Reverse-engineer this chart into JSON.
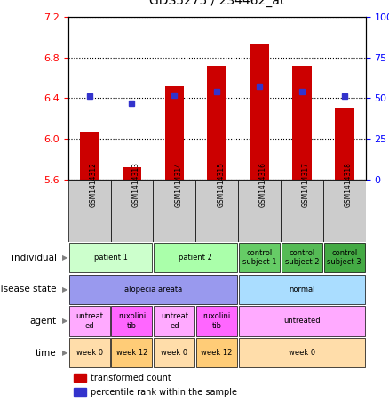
{
  "title": "GDS5275 / 234462_at",
  "samples": [
    "GSM1414312",
    "GSM1414313",
    "GSM1414314",
    "GSM1414315",
    "GSM1414316",
    "GSM1414317",
    "GSM1414318"
  ],
  "bar_values": [
    6.07,
    5.72,
    6.52,
    6.72,
    6.94,
    6.72,
    6.31
  ],
  "dot_values": [
    6.42,
    6.35,
    6.43,
    6.46,
    6.52,
    6.46,
    6.42
  ],
  "y_min": 5.6,
  "y_max": 7.2,
  "y_ticks": [
    5.6,
    6.0,
    6.4,
    6.8,
    7.2
  ],
  "y2_labels": [
    "0",
    "25",
    "50",
    "75",
    "100%"
  ],
  "bar_color": "#cc0000",
  "dot_color": "#3333cc",
  "metadata_rows": [
    {
      "label": "individual",
      "cells": [
        {
          "text": "patient 1",
          "colspan": 2,
          "color": "#ccffcc"
        },
        {
          "text": "patient 2",
          "colspan": 2,
          "color": "#aaffaa"
        },
        {
          "text": "control\nsubject 1",
          "colspan": 1,
          "color": "#66cc66"
        },
        {
          "text": "control\nsubject 2",
          "colspan": 1,
          "color": "#55bb55"
        },
        {
          "text": "control\nsubject 3",
          "colspan": 1,
          "color": "#44aa44"
        }
      ]
    },
    {
      "label": "disease state",
      "cells": [
        {
          "text": "alopecia areata",
          "colspan": 4,
          "color": "#9999ee"
        },
        {
          "text": "normal",
          "colspan": 3,
          "color": "#aaddff"
        }
      ]
    },
    {
      "label": "agent",
      "cells": [
        {
          "text": "untreat\ned",
          "colspan": 1,
          "color": "#ffaaff"
        },
        {
          "text": "ruxolini\ntib",
          "colspan": 1,
          "color": "#ff66ff"
        },
        {
          "text": "untreat\ned",
          "colspan": 1,
          "color": "#ffaaff"
        },
        {
          "text": "ruxolini\ntib",
          "colspan": 1,
          "color": "#ff66ff"
        },
        {
          "text": "untreated",
          "colspan": 3,
          "color": "#ffaaff"
        }
      ]
    },
    {
      "label": "time",
      "cells": [
        {
          "text": "week 0",
          "colspan": 1,
          "color": "#ffddaa"
        },
        {
          "text": "week 12",
          "colspan": 1,
          "color": "#ffcc77"
        },
        {
          "text": "week 0",
          "colspan": 1,
          "color": "#ffddaa"
        },
        {
          "text": "week 12",
          "colspan": 1,
          "color": "#ffcc77"
        },
        {
          "text": "week 0",
          "colspan": 3,
          "color": "#ffddaa"
        }
      ]
    }
  ],
  "legend": [
    {
      "color": "#cc0000",
      "label": "transformed count"
    },
    {
      "color": "#3333cc",
      "label": "percentile rank within the sample"
    }
  ],
  "fig_width": 4.38,
  "fig_height": 4.53,
  "dpi": 100
}
